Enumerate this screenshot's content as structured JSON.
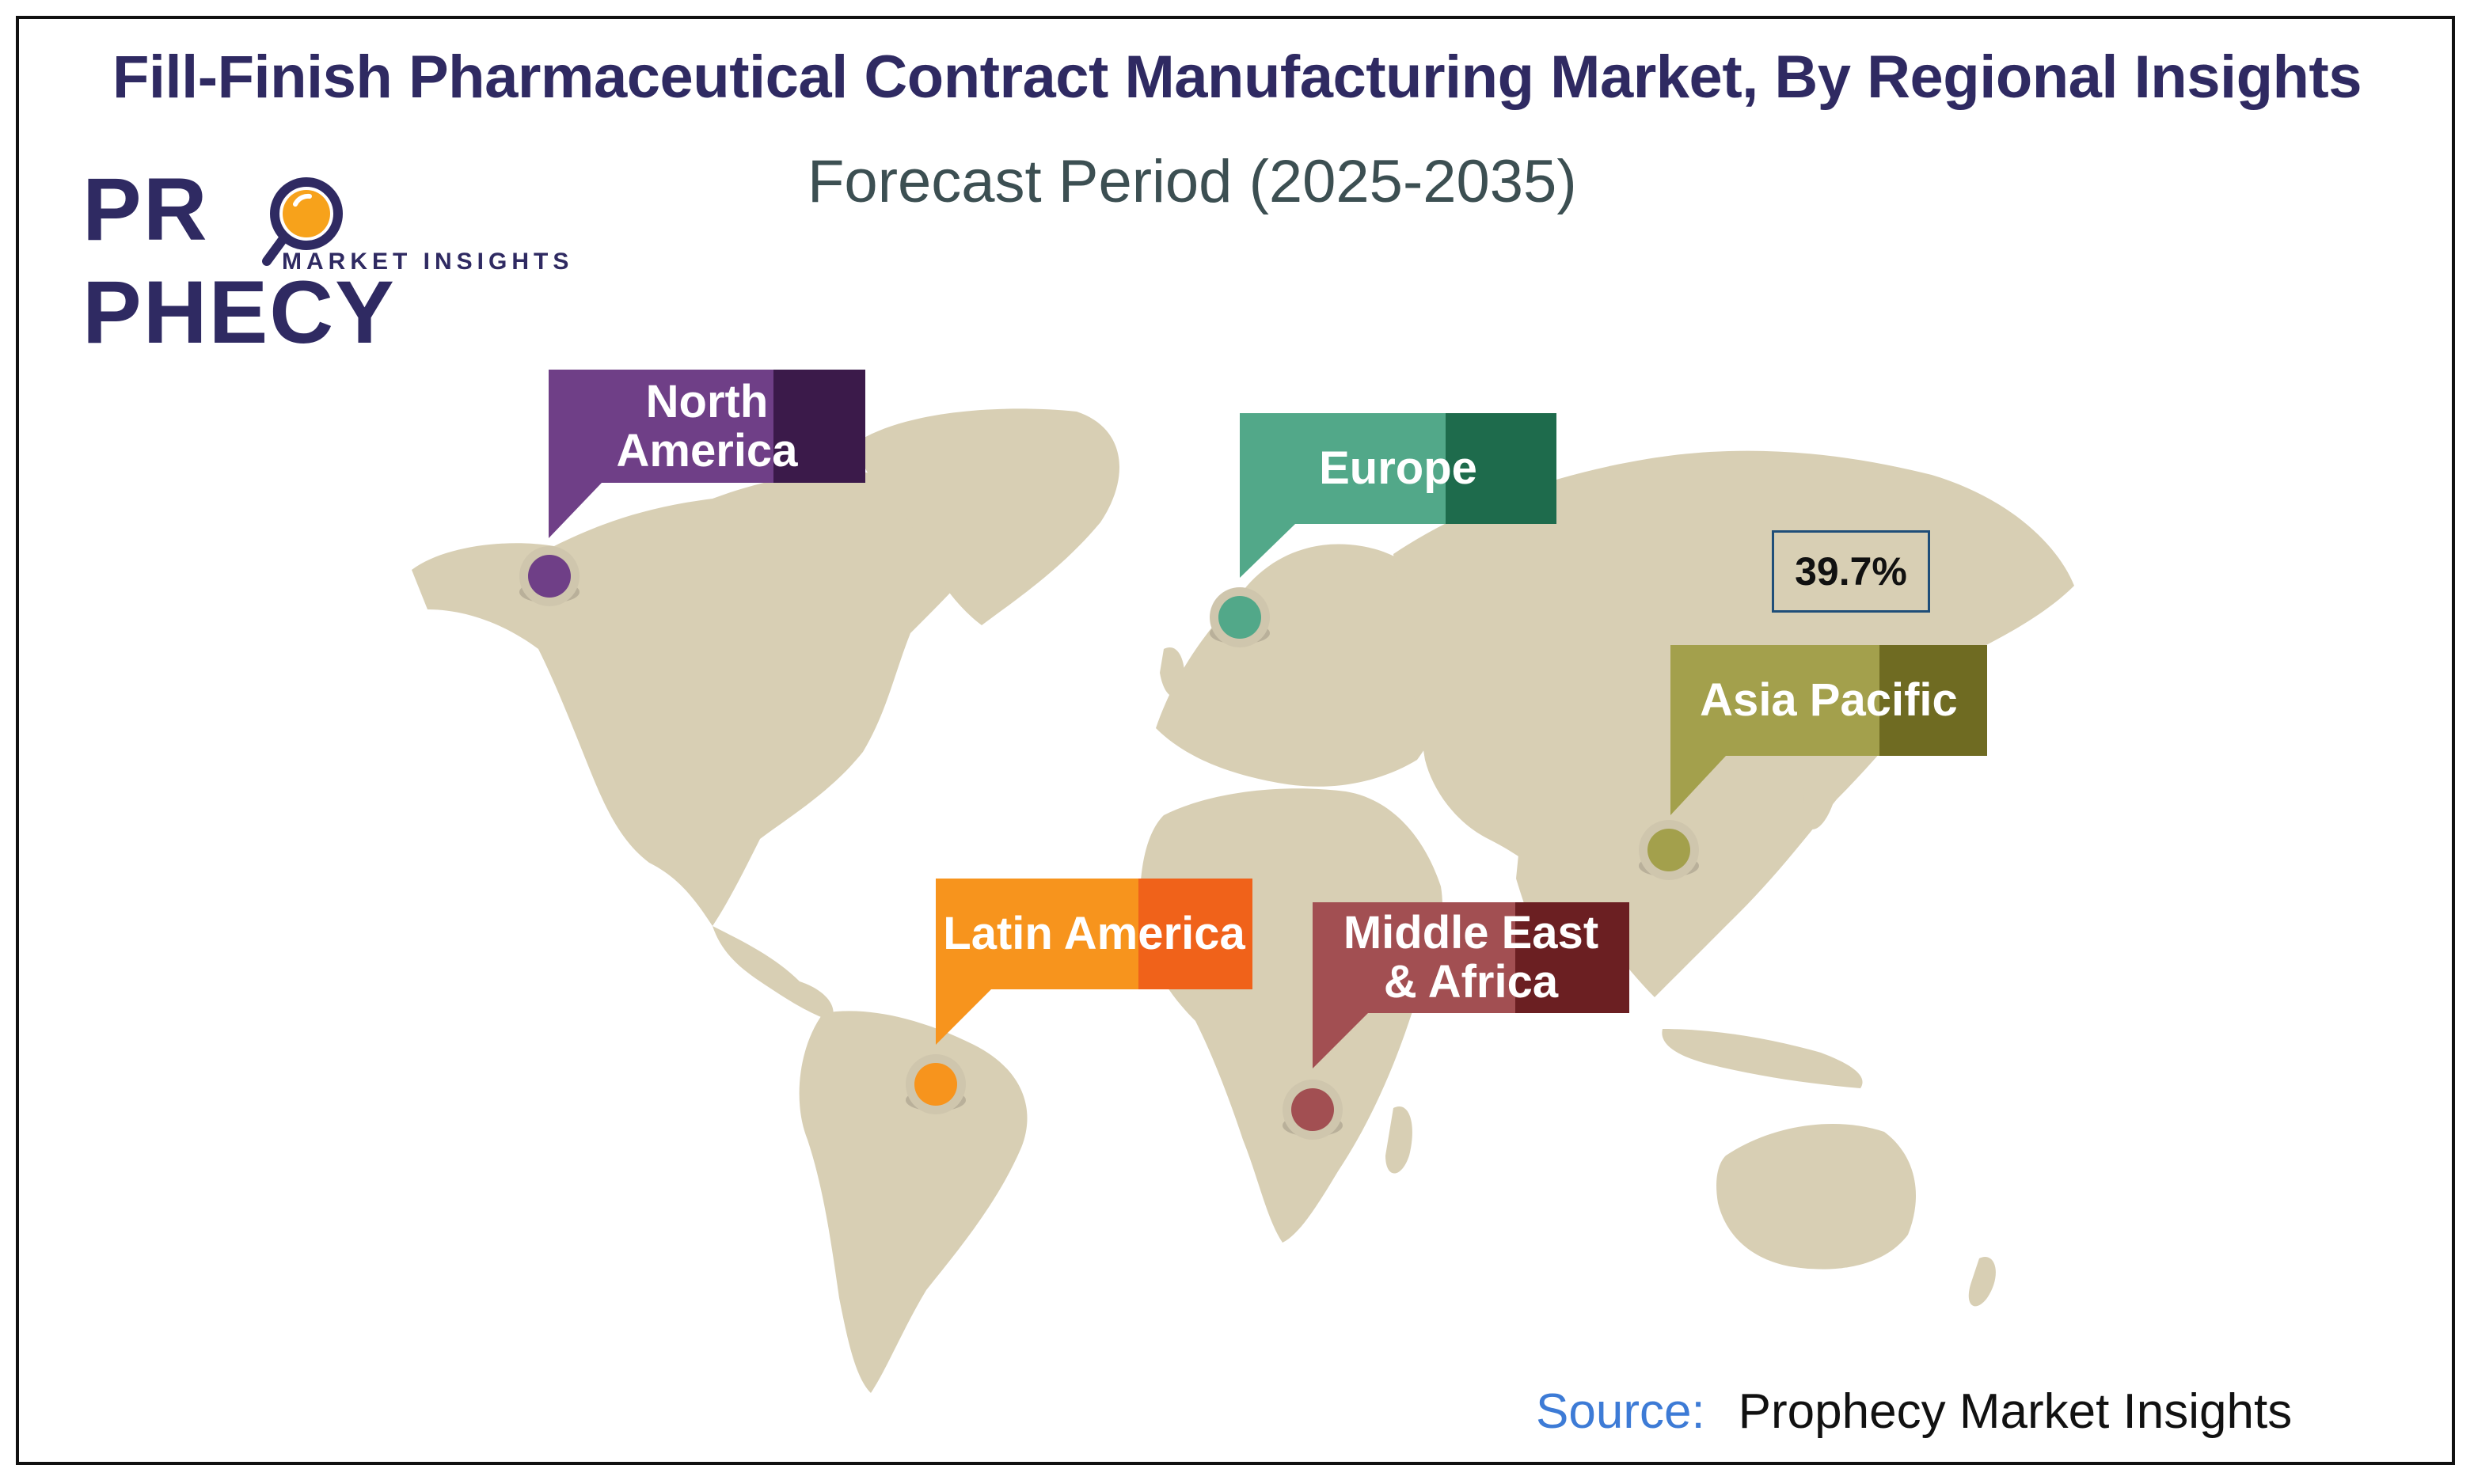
{
  "header": {
    "title": "Fill-Finish Pharmaceutical Contract Manufacturing Market, By Regional Insights",
    "subtitle": "Forecast Period (2025-2035)"
  },
  "logo": {
    "name_part1": "PR",
    "name_part2": "PHECY",
    "tagline": "MARKET INSIGHTS"
  },
  "regions": [
    {
      "name": "North America",
      "line1": "North",
      "line2": "America",
      "color": "#6f3f87",
      "dark": "#3b1a4a"
    },
    {
      "name": "Europe",
      "line1": "Europe",
      "line2": "",
      "color": "#52a889",
      "dark": "#1e6b4c"
    },
    {
      "name": "Asia Pacific",
      "line1": "Asia Pacific",
      "line2": "",
      "color": "#a3a04c",
      "dark": "#6f6b22"
    },
    {
      "name": "Latin America",
      "line1": "Latin America",
      "line2": "",
      "color": "#f7941d",
      "dark": "#f0621a"
    },
    {
      "name": "Middle East & Africa",
      "line1": "Middle East",
      "line2": "& Africa",
      "color": "#a24f52",
      "dark": "#6b1f22"
    }
  ],
  "highlight": {
    "region": "Asia Pacific",
    "share": "39.7%"
  },
  "source": {
    "label": "Source:",
    "value": "Prophecy Market Insights"
  },
  "colors": {
    "title": "#2f2a62",
    "land": "#d8cfb4",
    "border": "#111111"
  }
}
